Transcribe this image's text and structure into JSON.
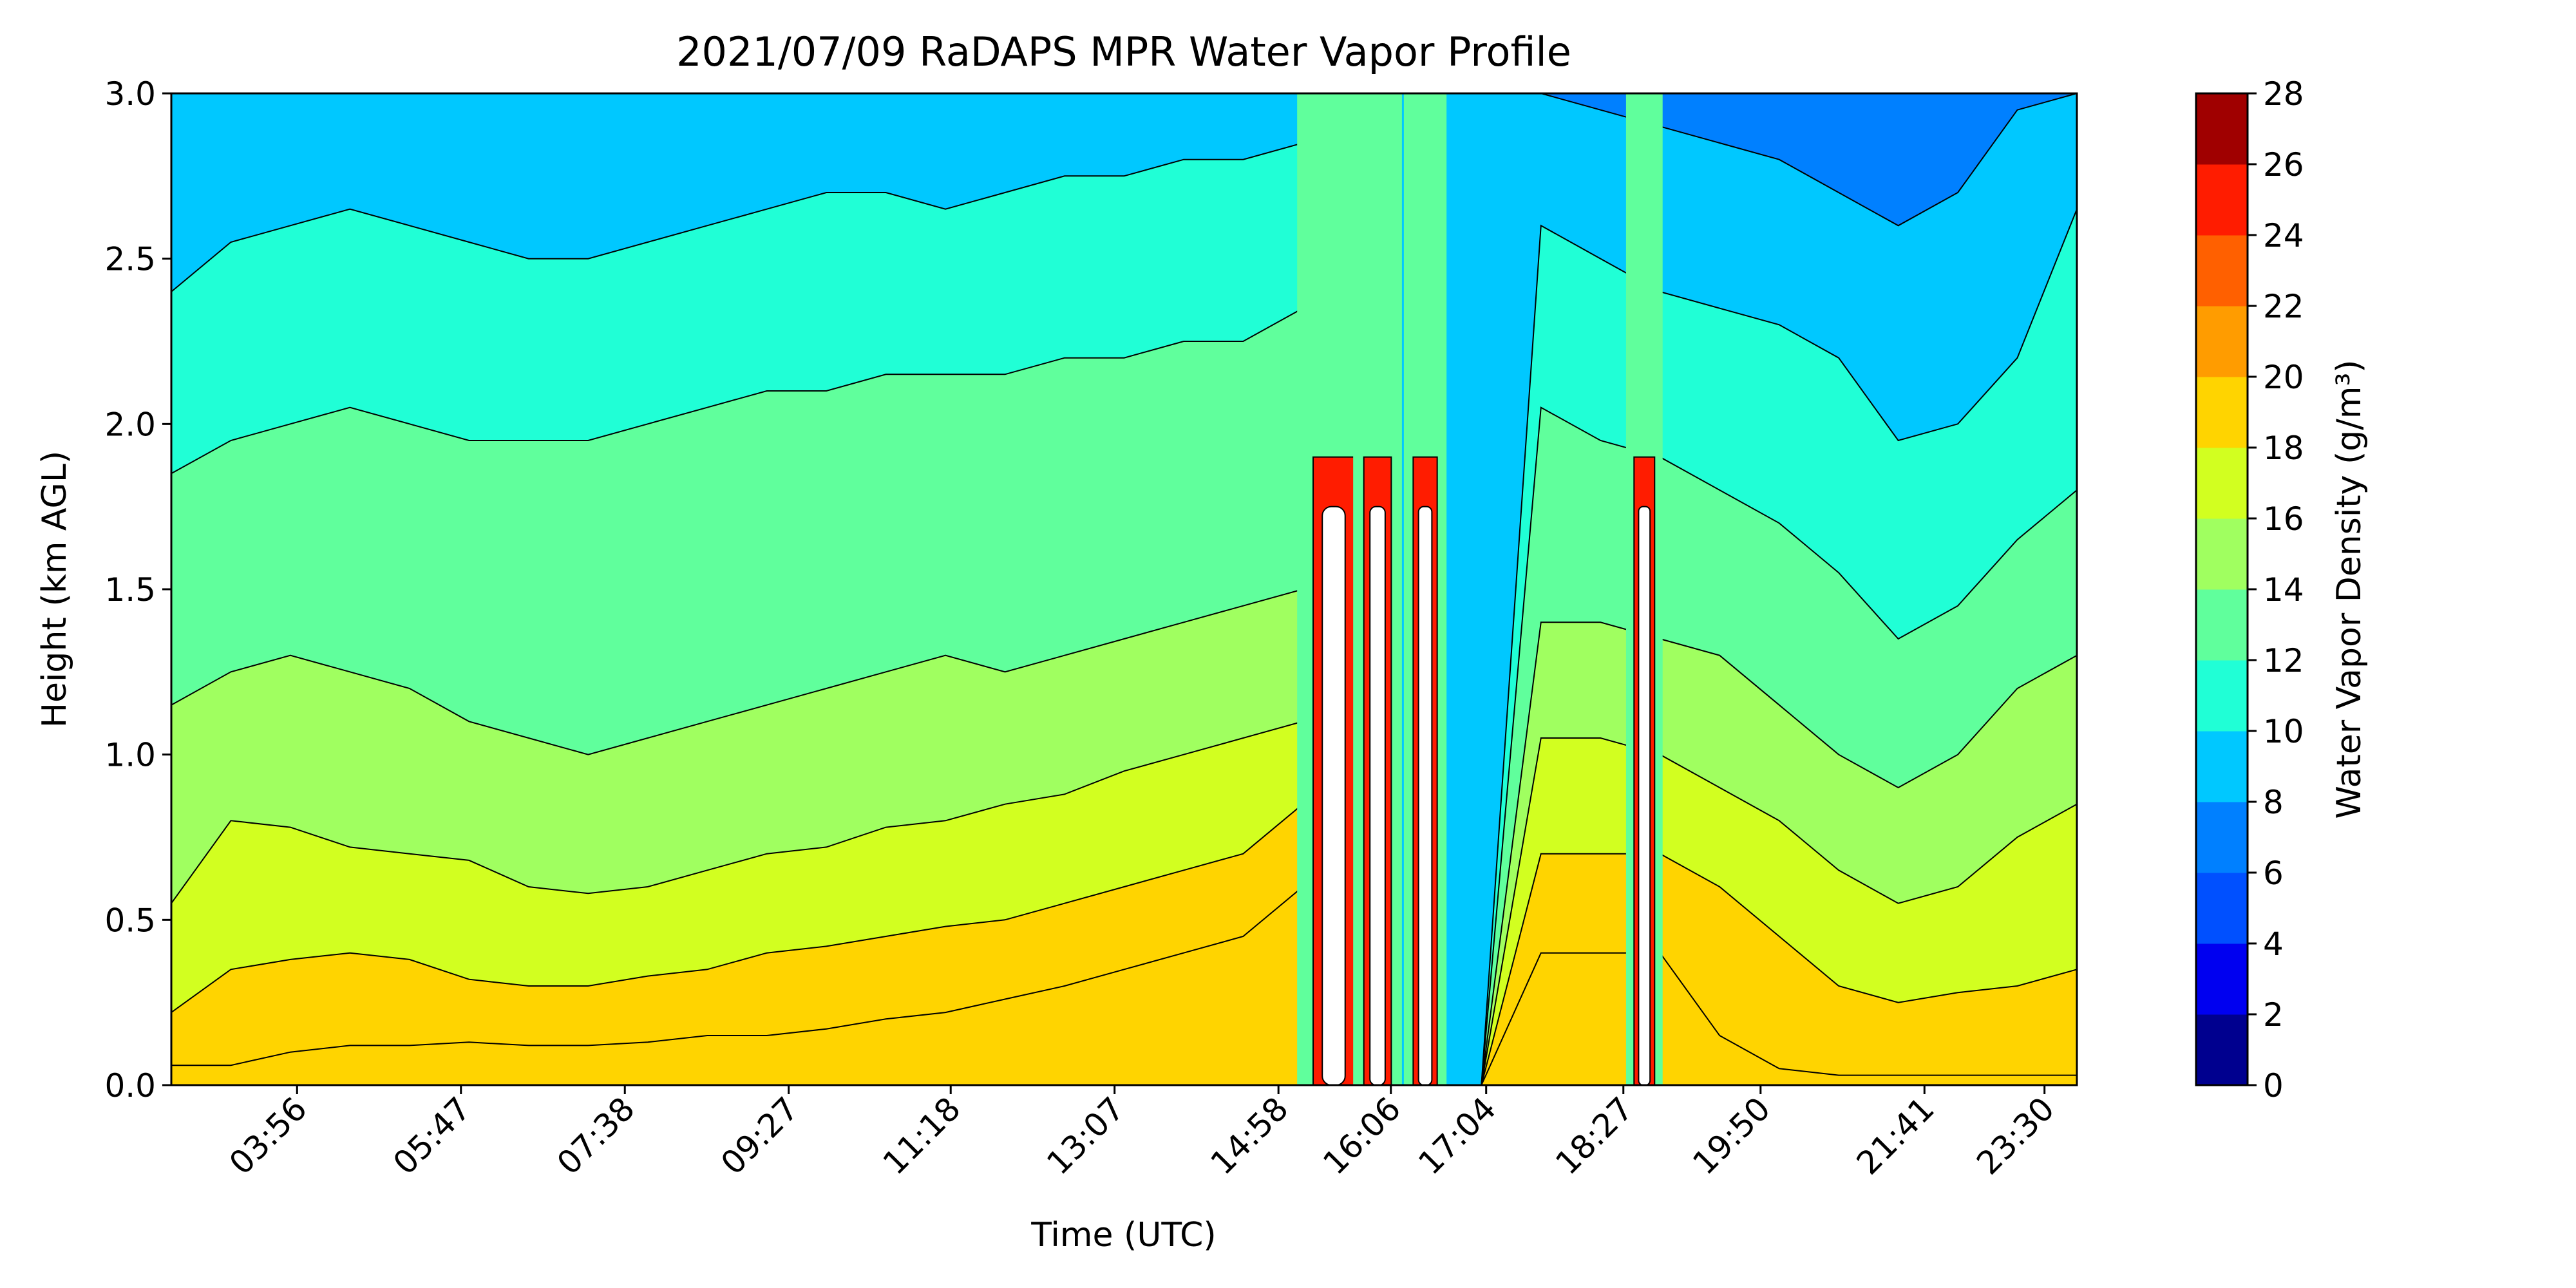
{
  "chart_data": {
    "type": "heatmap",
    "title": "2021/07/09 RaDAPS MPR Water Vapor Profile",
    "xlabel": "Time (UTC)",
    "ylabel": "Height (km AGL)",
    "colorbar_label": "Water Vapor Density (g/m³)",
    "x_ticks": [
      "03:56",
      "05:47",
      "07:38",
      "09:27",
      "11:18",
      "13:07",
      "14:58",
      "16:06",
      "17:04",
      "18:27",
      "19:50",
      "21:41",
      "23:30"
    ],
    "y_ticks": [
      "0.0",
      "0.5",
      "1.0",
      "1.5",
      "2.0",
      "2.5",
      "3.0"
    ],
    "ylim": [
      0,
      3
    ],
    "colorbar_ticks": [
      "0",
      "2",
      "4",
      "6",
      "8",
      "10",
      "12",
      "14",
      "16",
      "18",
      "20",
      "22",
      "24",
      "26",
      "28"
    ],
    "levels": [
      0,
      2,
      4,
      6,
      8,
      10,
      12,
      14,
      16,
      18,
      20,
      22,
      24,
      26,
      28
    ],
    "colors": [
      "#00008f",
      "#0000f0",
      "#0050ff",
      "#0080ff",
      "#00c8ff",
      "#20ffd6",
      "#60ff9c",
      "#a0ff60",
      "#d2ff20",
      "#ffd400",
      "#ff9c00",
      "#ff6000",
      "#ff1c00",
      "#a00000"
    ],
    "contour_boundaries": [
      {
        "upper_level": 20,
        "heights_km": [
          0.06,
          0.06,
          0.1,
          0.12,
          0.12,
          0.13,
          0.12,
          0.12,
          0.13,
          0.15,
          0.15,
          0.17,
          0.2,
          0.22,
          0.26,
          0.3,
          0.35,
          0.4,
          0.45,
          0.6,
          0.0,
          0.0,
          0.0,
          0.4,
          0.4,
          0.4,
          0.15,
          0.05,
          0.03,
          0.03,
          0.03,
          0.03,
          0.03
        ]
      },
      {
        "upper_level": 18,
        "heights_km": [
          0.22,
          0.35,
          0.38,
          0.4,
          0.38,
          0.32,
          0.3,
          0.3,
          0.33,
          0.35,
          0.4,
          0.42,
          0.45,
          0.48,
          0.5,
          0.55,
          0.6,
          0.65,
          0.7,
          0.85,
          0.0,
          0.0,
          0.0,
          0.7,
          0.7,
          0.7,
          0.6,
          0.45,
          0.3,
          0.25,
          0.28,
          0.3,
          0.35
        ]
      },
      {
        "upper_level": 16,
        "heights_km": [
          0.55,
          0.8,
          0.78,
          0.72,
          0.7,
          0.68,
          0.6,
          0.58,
          0.6,
          0.65,
          0.7,
          0.72,
          0.78,
          0.8,
          0.85,
          0.88,
          0.95,
          1.0,
          1.05,
          1.1,
          0.0,
          0.0,
          0.0,
          1.05,
          1.05,
          1.0,
          0.9,
          0.8,
          0.65,
          0.55,
          0.6,
          0.75,
          0.85
        ]
      },
      {
        "upper_level": 14,
        "heights_km": [
          1.15,
          1.25,
          1.3,
          1.25,
          1.2,
          1.1,
          1.05,
          1.0,
          1.05,
          1.1,
          1.15,
          1.2,
          1.25,
          1.3,
          1.25,
          1.3,
          1.35,
          1.4,
          1.45,
          1.5,
          0.0,
          0.0,
          0.0,
          1.4,
          1.4,
          1.35,
          1.3,
          1.15,
          1.0,
          0.9,
          1.0,
          1.2,
          1.3
        ]
      },
      {
        "upper_level": 12,
        "heights_km": [
          1.85,
          1.95,
          2.0,
          2.05,
          2.0,
          1.95,
          1.95,
          1.95,
          2.0,
          2.05,
          2.1,
          2.1,
          2.15,
          2.15,
          2.15,
          2.2,
          2.2,
          2.25,
          2.25,
          2.35,
          0.0,
          0.0,
          0.0,
          2.05,
          1.95,
          1.9,
          1.8,
          1.7,
          1.55,
          1.35,
          1.45,
          1.65,
          1.8
        ]
      },
      {
        "upper_level": 10,
        "heights_km": [
          2.4,
          2.55,
          2.6,
          2.65,
          2.6,
          2.55,
          2.5,
          2.5,
          2.55,
          2.6,
          2.65,
          2.7,
          2.7,
          2.65,
          2.7,
          2.75,
          2.75,
          2.8,
          2.8,
          2.85,
          0.0,
          0.0,
          0.0,
          2.6,
          2.5,
          2.4,
          2.35,
          2.3,
          2.2,
          1.95,
          2.0,
          2.2,
          2.65
        ]
      },
      {
        "upper_level": 8,
        "heights_km": [
          3.0,
          3.0,
          3.0,
          3.0,
          3.0,
          3.0,
          3.0,
          3.0,
          3.0,
          3.0,
          3.0,
          3.0,
          3.0,
          3.0,
          3.0,
          3.0,
          3.0,
          3.0,
          3.0,
          3.0,
          3.0,
          3.0,
          3.0,
          3.0,
          2.95,
          2.9,
          2.85,
          2.8,
          2.7,
          2.6,
          2.7,
          2.95,
          3.0
        ]
      }
    ],
    "rain_spike_columns": [
      {
        "x_fraction": 0.61,
        "width_fraction": 0.012
      },
      {
        "x_fraction": 0.633,
        "width_fraction": 0.008
      },
      {
        "x_fraction": 0.658,
        "width_fraction": 0.007
      },
      {
        "x_fraction": 0.773,
        "width_fraction": 0.006
      }
    ]
  }
}
